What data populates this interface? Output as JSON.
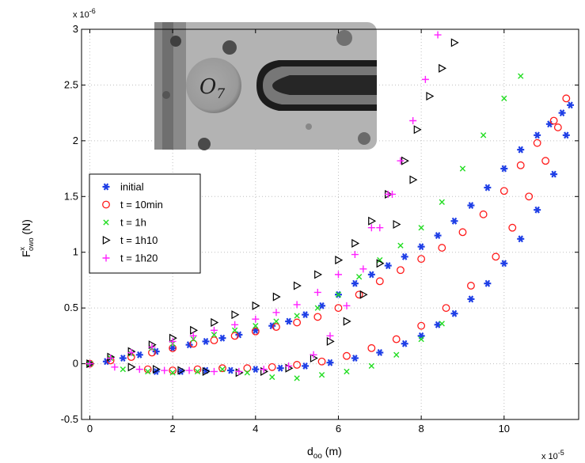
{
  "chart_data": {
    "type": "scatter",
    "xlabel": "d",
    "xlabel_sub": "oo",
    "xlabel_unit": " (m)",
    "ylabel": "F",
    "ylabel_sup": "x",
    "ylabel_sub": "owo",
    "ylabel_unit": " (N)",
    "x_multiplier": "x 10",
    "x_multiplier_exp": "-5",
    "y_multiplier": "x 10",
    "y_multiplier_exp": "-6",
    "xlim": [
      -0.2,
      11.8
    ],
    "ylim": [
      -0.5,
      3
    ],
    "xticks": [
      0,
      2,
      4,
      6,
      8,
      10
    ],
    "yticks": [
      -0.5,
      0,
      0.5,
      1,
      1.5,
      2,
      2.5,
      3
    ],
    "xtick_labels": [
      "0",
      "2",
      "4",
      "6",
      "8",
      "10"
    ],
    "ytick_labels": [
      "-0.5",
      "0",
      "0.5",
      "1",
      "1.5",
      "2",
      "2.5",
      "3"
    ],
    "grid": true,
    "legend_position": "left",
    "inset_label": "O",
    "inset_label_sub": "7",
    "series": [
      {
        "name": "initial",
        "marker": "star",
        "color": "#1f3fe6",
        "x": [
          0,
          0.4,
          0.8,
          1.2,
          1.6,
          2.0,
          2.4,
          2.8,
          3.2,
          3.6,
          4.0,
          4.4,
          4.8,
          5.2,
          5.6,
          6.0,
          6.4,
          6.8,
          7.2,
          7.6,
          8.0,
          8.4,
          8.8,
          9.2,
          9.6,
          10.0,
          10.4,
          10.8,
          11.1,
          11.4,
          11.6
        ],
        "y": [
          0.0,
          0.02,
          0.05,
          0.08,
          0.11,
          0.14,
          0.17,
          0.2,
          0.23,
          0.26,
          0.3,
          0.34,
          0.38,
          0.44,
          0.52,
          0.62,
          0.72,
          0.8,
          0.88,
          0.96,
          1.05,
          1.15,
          1.28,
          1.42,
          1.58,
          1.75,
          1.92,
          2.05,
          2.15,
          2.25,
          2.32
        ],
        "return_x": [
          1.6,
          2.2,
          2.8,
          3.4,
          4.0,
          4.6,
          5.2,
          5.8,
          6.4,
          7.0,
          7.6,
          8.0,
          8.4,
          8.8,
          9.2,
          9.6,
          10.0,
          10.4,
          10.8,
          11.2,
          11.5
        ],
        "return_y": [
          -0.07,
          -0.07,
          -0.06,
          -0.06,
          -0.05,
          -0.04,
          -0.02,
          0.01,
          0.05,
          0.1,
          0.18,
          0.25,
          0.35,
          0.45,
          0.58,
          0.72,
          0.9,
          1.12,
          1.38,
          1.7,
          2.05
        ]
      },
      {
        "name": "t = 10min",
        "marker": "circle",
        "color": "#ff1a1a",
        "x": [
          0,
          0.5,
          1.0,
          1.5,
          2.0,
          2.5,
          3.0,
          3.5,
          4.0,
          4.5,
          5.0,
          5.5,
          6.0,
          6.5,
          7.0,
          7.5,
          8.0,
          8.5,
          9.0,
          9.5,
          10.0,
          10.4,
          10.8,
          11.2,
          11.5
        ],
        "y": [
          0.0,
          0.03,
          0.06,
          0.1,
          0.14,
          0.18,
          0.21,
          0.25,
          0.29,
          0.33,
          0.37,
          0.42,
          0.5,
          0.62,
          0.74,
          0.84,
          0.94,
          1.04,
          1.18,
          1.34,
          1.55,
          1.78,
          1.98,
          2.18,
          2.38
        ],
        "return_x": [
          1.4,
          2.0,
          2.6,
          3.2,
          3.8,
          4.4,
          5.0,
          5.6,
          6.2,
          6.8,
          7.4,
          8.0,
          8.6,
          9.2,
          9.8,
          10.2,
          10.6,
          11.0,
          11.3
        ],
        "return_y": [
          -0.05,
          -0.06,
          -0.05,
          -0.04,
          -0.04,
          -0.03,
          -0.01,
          0.02,
          0.07,
          0.14,
          0.22,
          0.34,
          0.5,
          0.7,
          0.96,
          1.22,
          1.5,
          1.82,
          2.12
        ]
      },
      {
        "name": "t = 1h",
        "marker": "x",
        "color": "#22dd22",
        "x": [
          0,
          0.5,
          1.0,
          1.5,
          2.0,
          2.5,
          3.0,
          3.5,
          4.0,
          4.5,
          5.0,
          5.5,
          6.0,
          6.5,
          7.0,
          7.5,
          8.0,
          8.5,
          9.0,
          9.5,
          10.0,
          10.4
        ],
        "y": [
          0.0,
          0.05,
          0.09,
          0.14,
          0.18,
          0.22,
          0.26,
          0.3,
          0.34,
          0.38,
          0.43,
          0.5,
          0.62,
          0.78,
          0.93,
          1.06,
          1.22,
          1.45,
          1.75,
          2.05,
          2.38,
          2.58
        ],
        "return_x": [
          0.8,
          1.4,
          2.0,
          2.6,
          3.2,
          3.8,
          4.4,
          5.0,
          5.6,
          6.2,
          6.8,
          7.4,
          8.0,
          8.5
        ],
        "return_y": [
          -0.05,
          -0.07,
          -0.08,
          -0.07,
          -0.05,
          -0.08,
          -0.12,
          -0.13,
          -0.1,
          -0.07,
          -0.02,
          0.08,
          0.22,
          0.36
        ]
      },
      {
        "name": "t = 1h10",
        "marker": "triangle-right",
        "color": "#000000",
        "x": [
          0,
          0.5,
          1.0,
          1.5,
          2.0,
          2.5,
          3.0,
          3.5,
          4.0,
          4.5,
          5.0,
          5.5,
          6.0,
          6.4,
          6.8,
          7.2,
          7.6,
          7.9,
          8.2,
          8.5,
          8.8
        ],
        "y": [
          0.0,
          0.06,
          0.11,
          0.17,
          0.23,
          0.3,
          0.37,
          0.44,
          0.52,
          0.6,
          0.7,
          0.8,
          0.93,
          1.08,
          1.28,
          1.52,
          1.82,
          2.1,
          2.4,
          2.65,
          2.88
        ],
        "return_x": [
          1.0,
          1.6,
          2.2,
          2.8,
          3.6,
          4.2,
          4.8,
          5.4,
          5.8,
          6.2,
          6.6,
          7.0,
          7.4,
          7.8
        ],
        "return_y": [
          -0.03,
          -0.05,
          -0.06,
          -0.07,
          -0.08,
          -0.07,
          -0.04,
          0.05,
          0.2,
          0.38,
          0.62,
          0.9,
          1.25,
          1.65
        ]
      },
      {
        "name": "t = 1h20",
        "marker": "plus",
        "color": "#ff22ff",
        "x": [
          0,
          0.5,
          1.0,
          1.5,
          2.0,
          2.5,
          3.0,
          3.5,
          4.0,
          4.5,
          5.0,
          5.5,
          6.0,
          6.4,
          6.8,
          7.2,
          7.5,
          7.8,
          8.1,
          8.4
        ],
        "y": [
          0.0,
          0.05,
          0.1,
          0.15,
          0.2,
          0.25,
          0.3,
          0.35,
          0.4,
          0.46,
          0.53,
          0.64,
          0.8,
          0.98,
          1.22,
          1.52,
          1.82,
          2.18,
          2.55,
          2.95
        ],
        "return_x": [
          0.6,
          1.2,
          1.8,
          2.4,
          3.0,
          3.6,
          4.2,
          4.8,
          5.4,
          5.8,
          6.2,
          6.6,
          7.0,
          7.3
        ],
        "return_y": [
          -0.03,
          -0.05,
          -0.06,
          -0.06,
          -0.07,
          -0.07,
          -0.05,
          -0.02,
          0.08,
          0.25,
          0.52,
          0.85,
          1.22,
          1.52
        ]
      }
    ]
  }
}
